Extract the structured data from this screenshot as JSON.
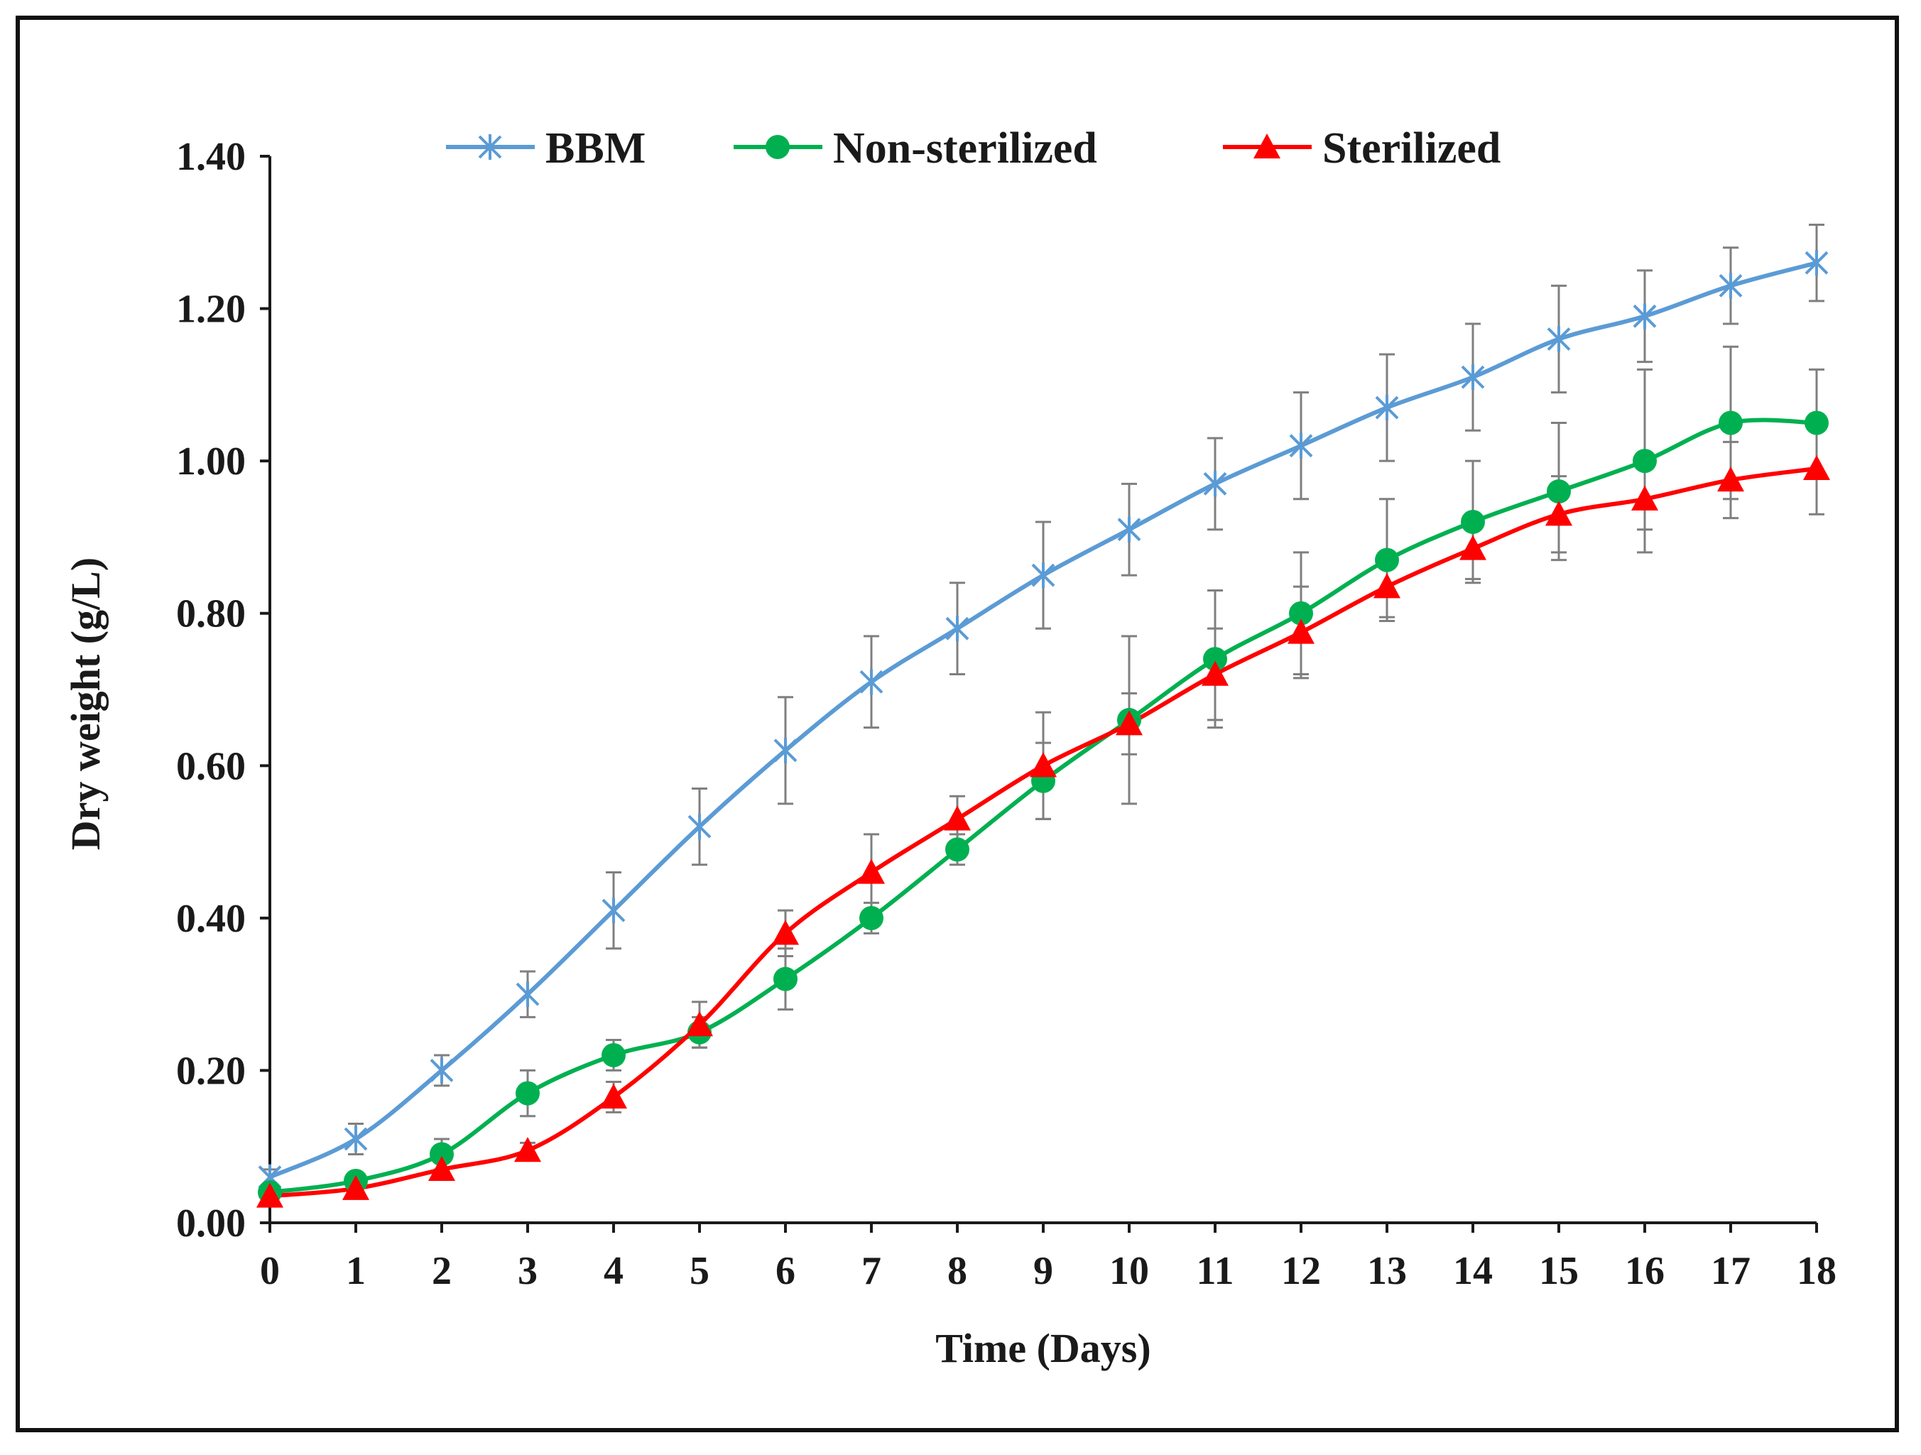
{
  "chart_data": {
    "type": "line",
    "title": "",
    "xlabel": "Time (Days)",
    "ylabel": "Dry weight (g/L)",
    "xlim": [
      0,
      18
    ],
    "ylim": [
      0,
      1.4
    ],
    "x": [
      0,
      1,
      2,
      3,
      4,
      5,
      6,
      7,
      8,
      9,
      10,
      11,
      12,
      13,
      14,
      15,
      16,
      17,
      18
    ],
    "x_tick_labels": [
      "0",
      "1",
      "2",
      "3",
      "4",
      "5",
      "6",
      "7",
      "8",
      "9",
      "10",
      "11",
      "12",
      "13",
      "14",
      "15",
      "16",
      "17",
      "18"
    ],
    "y_ticks": [
      0,
      0.2,
      0.4,
      0.6,
      0.8,
      1.0,
      1.2,
      1.4
    ],
    "y_tick_labels": [
      "0.00",
      "0.20",
      "0.40",
      "0.60",
      "0.80",
      "1.00",
      "1.20",
      "1.40"
    ],
    "grid": false,
    "legend_position": "top",
    "series": [
      {
        "name": "BBM",
        "color": "#5b9bd5",
        "marker": "star",
        "values": [
          0.06,
          0.11,
          0.2,
          0.3,
          0.41,
          0.52,
          0.62,
          0.71,
          0.78,
          0.85,
          0.91,
          0.97,
          1.02,
          1.07,
          1.11,
          1.16,
          1.19,
          1.23,
          1.26
        ],
        "errors": [
          0.01,
          0.02,
          0.02,
          0.03,
          0.05,
          0.05,
          0.07,
          0.06,
          0.06,
          0.07,
          0.06,
          0.06,
          0.07,
          0.07,
          0.07,
          0.07,
          0.06,
          0.05,
          0.05
        ]
      },
      {
        "name": "Non-sterilized",
        "color": "#00b050",
        "marker": "circle",
        "values": [
          0.04,
          0.055,
          0.09,
          0.17,
          0.22,
          0.25,
          0.32,
          0.4,
          0.49,
          0.58,
          0.66,
          0.74,
          0.8,
          0.87,
          0.92,
          0.96,
          1.0,
          1.05,
          1.05
        ],
        "errors": [
          0.005,
          0.01,
          0.02,
          0.03,
          0.02,
          0.02,
          0.04,
          0.02,
          0.02,
          0.05,
          0.11,
          0.09,
          0.08,
          0.08,
          0.08,
          0.09,
          0.12,
          0.1,
          0.07
        ]
      },
      {
        "name": "Sterilized",
        "color": "#ff0000",
        "marker": "triangle",
        "values": [
          0.035,
          0.045,
          0.07,
          0.095,
          0.165,
          0.26,
          0.38,
          0.46,
          0.53,
          0.6,
          0.655,
          0.72,
          0.775,
          0.835,
          0.885,
          0.93,
          0.95,
          0.975,
          0.99
        ],
        "errors": [
          0.005,
          0.01,
          0.01,
          0.01,
          0.02,
          0.03,
          0.03,
          0.05,
          0.03,
          0.07,
          0.04,
          0.06,
          0.06,
          0.04,
          0.04,
          0.05,
          0.04,
          0.05,
          0.06
        ]
      }
    ]
  }
}
